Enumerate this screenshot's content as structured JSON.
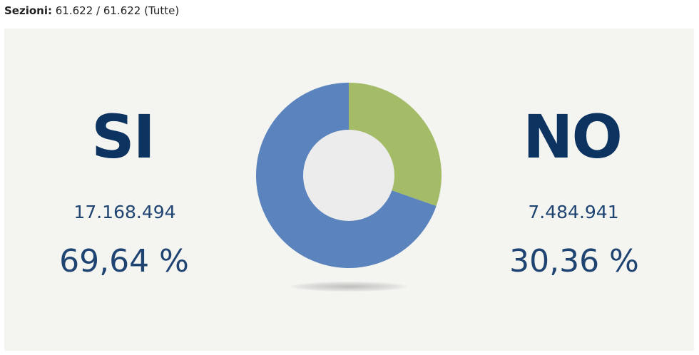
{
  "header": {
    "label": "Sezioni:",
    "value": "61.622 / 61.622 (Tutte)"
  },
  "results": {
    "yes": {
      "label": "SI",
      "votes": "17.168.494",
      "percent": "69,64 %"
    },
    "no": {
      "label": "NO",
      "votes": "7.484.941",
      "percent": "30,36 %"
    }
  },
  "chart_data": {
    "type": "pie",
    "categories": [
      "SI",
      "NO"
    ],
    "values": [
      69.64,
      30.36
    ],
    "colors": [
      "#5b83bd",
      "#a4bb68"
    ],
    "hole_color": "#ececec",
    "start": "top, NO clockwise first"
  }
}
